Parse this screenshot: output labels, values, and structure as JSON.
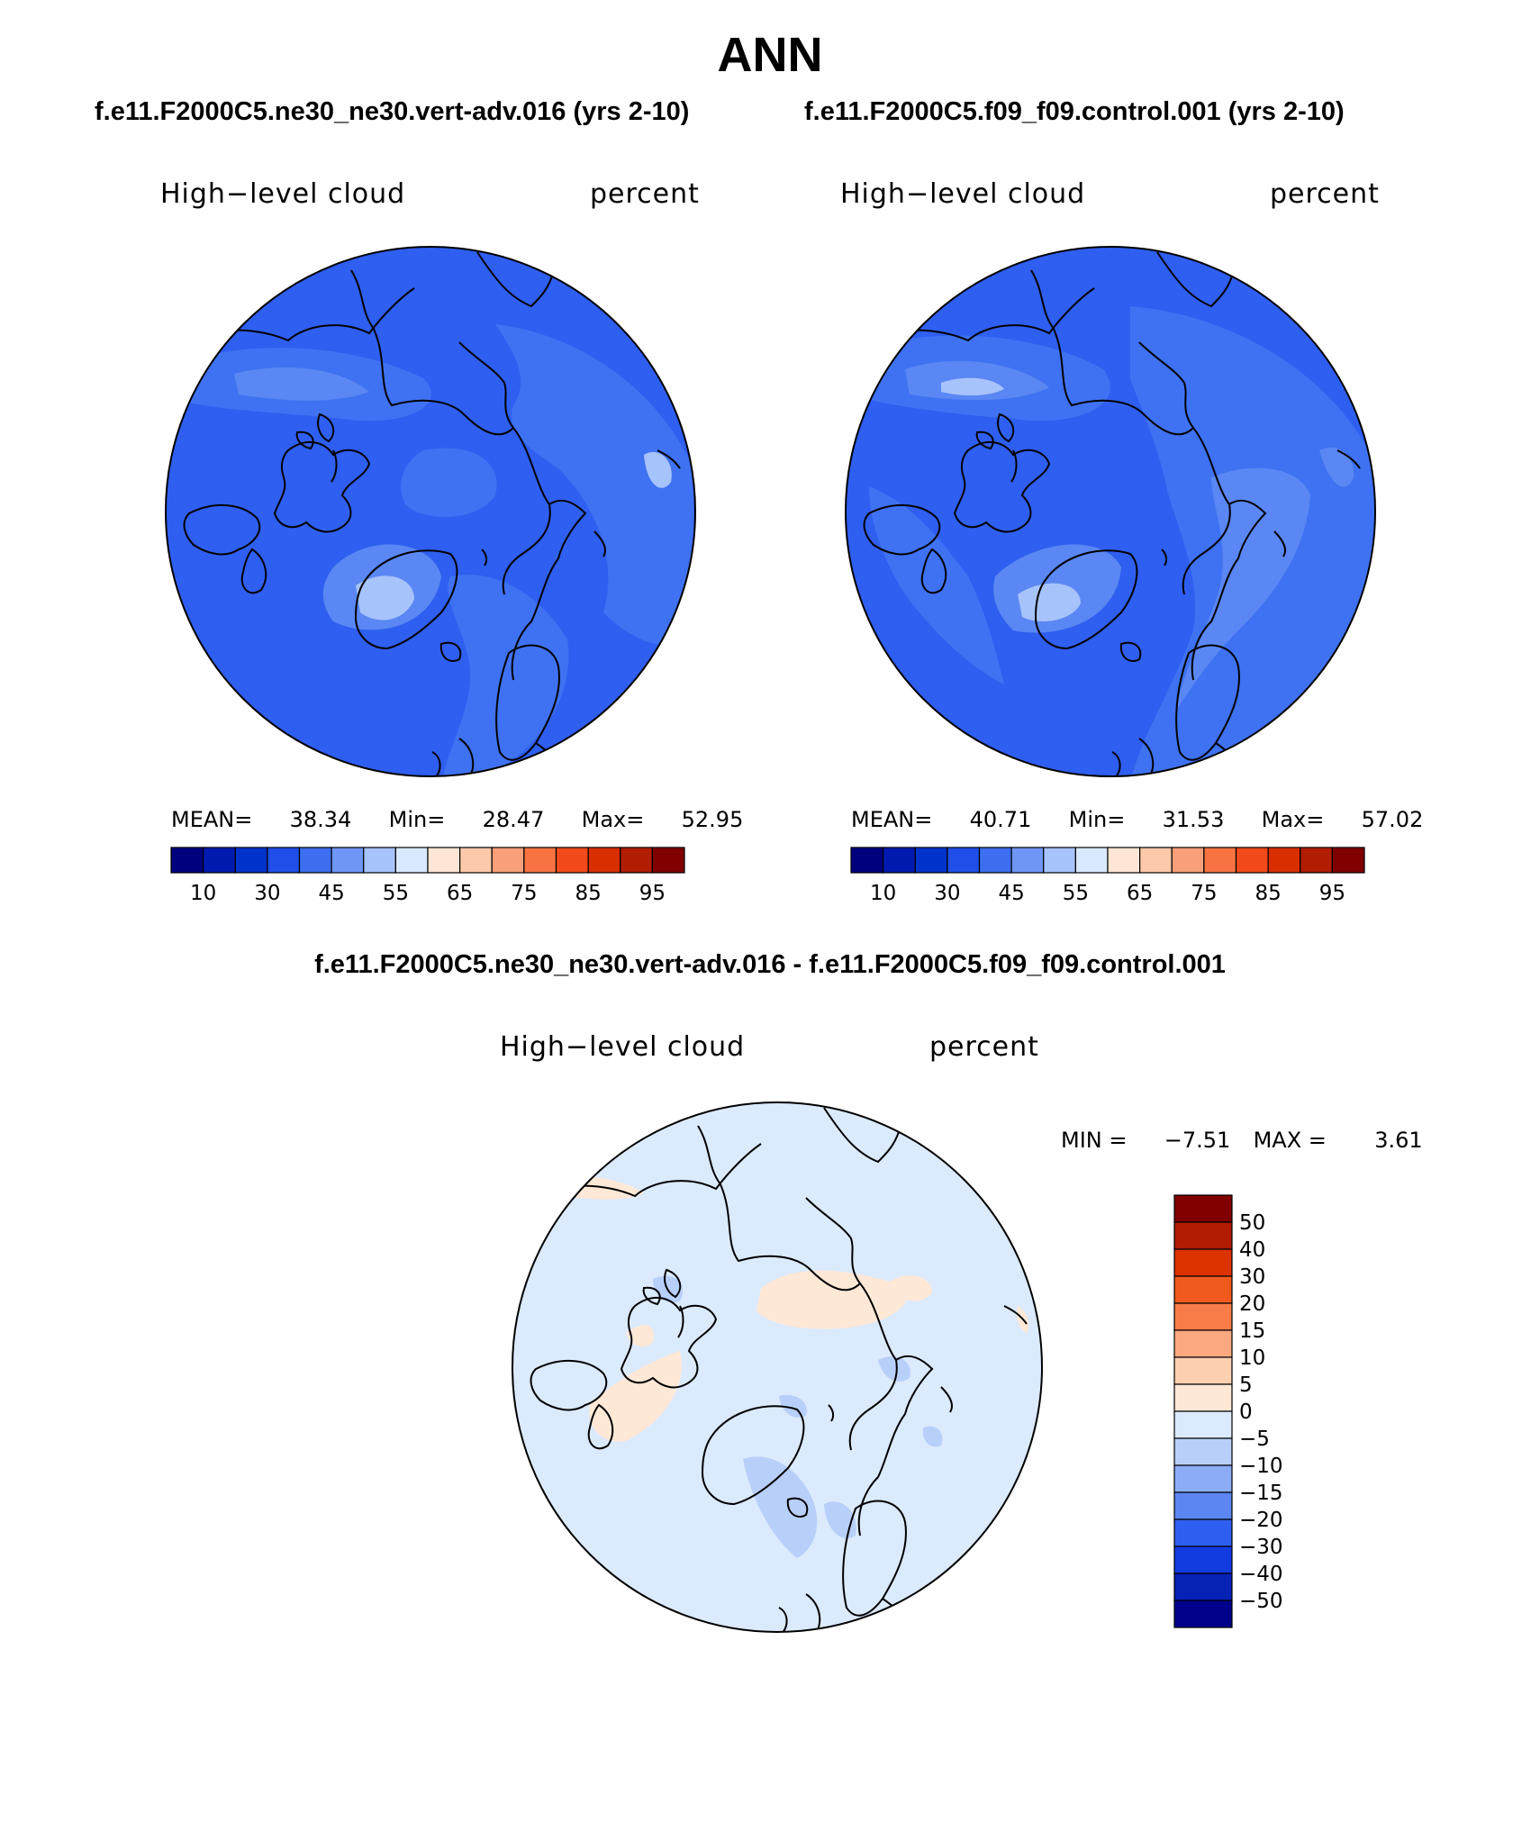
{
  "title": "ANN",
  "panels": [
    {
      "case_title": "f.e11.F2000C5.ne30_ne30.vert-adv.016 (yrs 2-10)",
      "variable": "High−level cloud",
      "units": "percent",
      "stats": {
        "mean_label": "MEAN=",
        "mean": "38.34",
        "min_label": "Min=",
        "min": "28.47",
        "max_label": "Max=",
        "max": "52.95"
      }
    },
    {
      "case_title": "f.e11.F2000C5.f09_f09.control.001 (yrs 2-10)",
      "variable": "High−level cloud",
      "units": "percent",
      "stats": {
        "mean_label": "MEAN=",
        "mean": "40.71",
        "min_label": "Min=",
        "min": "31.53",
        "max_label": "Max=",
        "max": "57.02"
      }
    }
  ],
  "diff_panel": {
    "title": "f.e11.F2000C5.ne30_ne30.vert-adv.016 - f.e11.F2000C5.f09_f09.control.001",
    "variable": "High−level cloud",
    "units": "percent",
    "stats": {
      "min_label": "MIN =",
      "min": "−7.51",
      "max_label": "MAX =",
      "max": "3.61"
    }
  },
  "colorbar_abs": {
    "colors": [
      "#00007f",
      "#001ab0",
      "#0033cc",
      "#1f4fe8",
      "#3d6ef0",
      "#6f95f5",
      "#a7c3fb",
      "#d9e9ff",
      "#ffe6d4",
      "#fcc9aa",
      "#f9a07a",
      "#f77442",
      "#f24a1a",
      "#d92e00",
      "#b01d00",
      "#800000"
    ],
    "tick_labels": [
      "10",
      "30",
      "45",
      "55",
      "65",
      "75",
      "85",
      "95"
    ]
  },
  "colorbar_diff": {
    "colors": [
      "#800000",
      "#b01d00",
      "#dc3300",
      "#f05a1e",
      "#f87c48",
      "#fba880",
      "#fdd0b0",
      "#ffe8d6",
      "#dbeafd",
      "#b8cffa",
      "#8cadf6",
      "#5c87f2",
      "#2f5ff0",
      "#123be0",
      "#0621b6",
      "#00008a"
    ],
    "tick_labels": [
      "50",
      "40",
      "30",
      "20",
      "15",
      "10",
      "5",
      "0",
      "−5",
      "−10",
      "−15",
      "−20",
      "−30",
      "−40",
      "−50"
    ]
  },
  "chart_data": [
    {
      "type": "heatmap",
      "projection": "north polar stereographic",
      "title": "f.e11.F2000C5.ne30_ne30.vert-adv.016 (yrs 2-10)",
      "variable": "High−level cloud",
      "units": "percent",
      "mean": 38.34,
      "min": 28.47,
      "max": 52.95,
      "contour_levels": [
        10,
        30,
        45,
        55,
        65,
        75,
        85,
        95
      ]
    },
    {
      "type": "heatmap",
      "projection": "north polar stereographic",
      "title": "f.e11.F2000C5.f09_f09.control.001 (yrs 2-10)",
      "variable": "High−level cloud",
      "units": "percent",
      "mean": 40.71,
      "min": 31.53,
      "max": 57.02,
      "contour_levels": [
        10,
        30,
        45,
        55,
        65,
        75,
        85,
        95
      ]
    },
    {
      "type": "heatmap",
      "projection": "north polar stereographic",
      "title": "f.e11.F2000C5.ne30_ne30.vert-adv.016 - f.e11.F2000C5.f09_f09.control.001",
      "variable": "High−level cloud",
      "units": "percent",
      "min": -7.51,
      "max": 3.61,
      "contour_levels": [
        -50,
        -40,
        -30,
        -20,
        -15,
        -10,
        -5,
        0,
        5,
        10,
        15,
        20,
        30,
        40,
        50
      ]
    }
  ]
}
